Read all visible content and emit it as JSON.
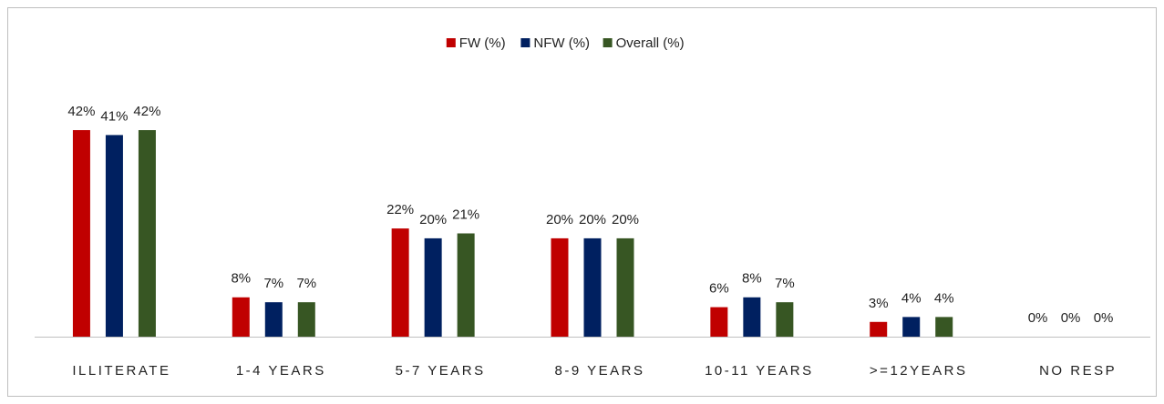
{
  "chart_data": {
    "type": "bar",
    "categories": [
      "ILLITERATE",
      "1-4 YEARS",
      "5-7 YEARS",
      "8-9 YEARS",
      "10-11 YEARS",
      ">=12YEARS",
      "NO RESP"
    ],
    "series": [
      {
        "name": "FW (%)",
        "color": "#c00000",
        "values": [
          42,
          8,
          22,
          20,
          6,
          3,
          0
        ],
        "value_labels": [
          "42%",
          "8%",
          "22%",
          "20%",
          "6%",
          "3%",
          "0%"
        ]
      },
      {
        "name": "NFW (%)",
        "color": "#002060",
        "values": [
          41,
          7,
          20,
          20,
          8,
          4,
          0
        ],
        "value_labels": [
          "41%",
          "7%",
          "20%",
          "20%",
          "8%",
          "4%",
          "0%"
        ]
      },
      {
        "name": "Overall (%)",
        "color": "#375623",
        "values": [
          42,
          7,
          21,
          20,
          7,
          4,
          0
        ],
        "value_labels": [
          "42%",
          "7%",
          "21%",
          "20%",
          "7%",
          "4%",
          "0%"
        ]
      }
    ],
    "legend": "top"
  }
}
